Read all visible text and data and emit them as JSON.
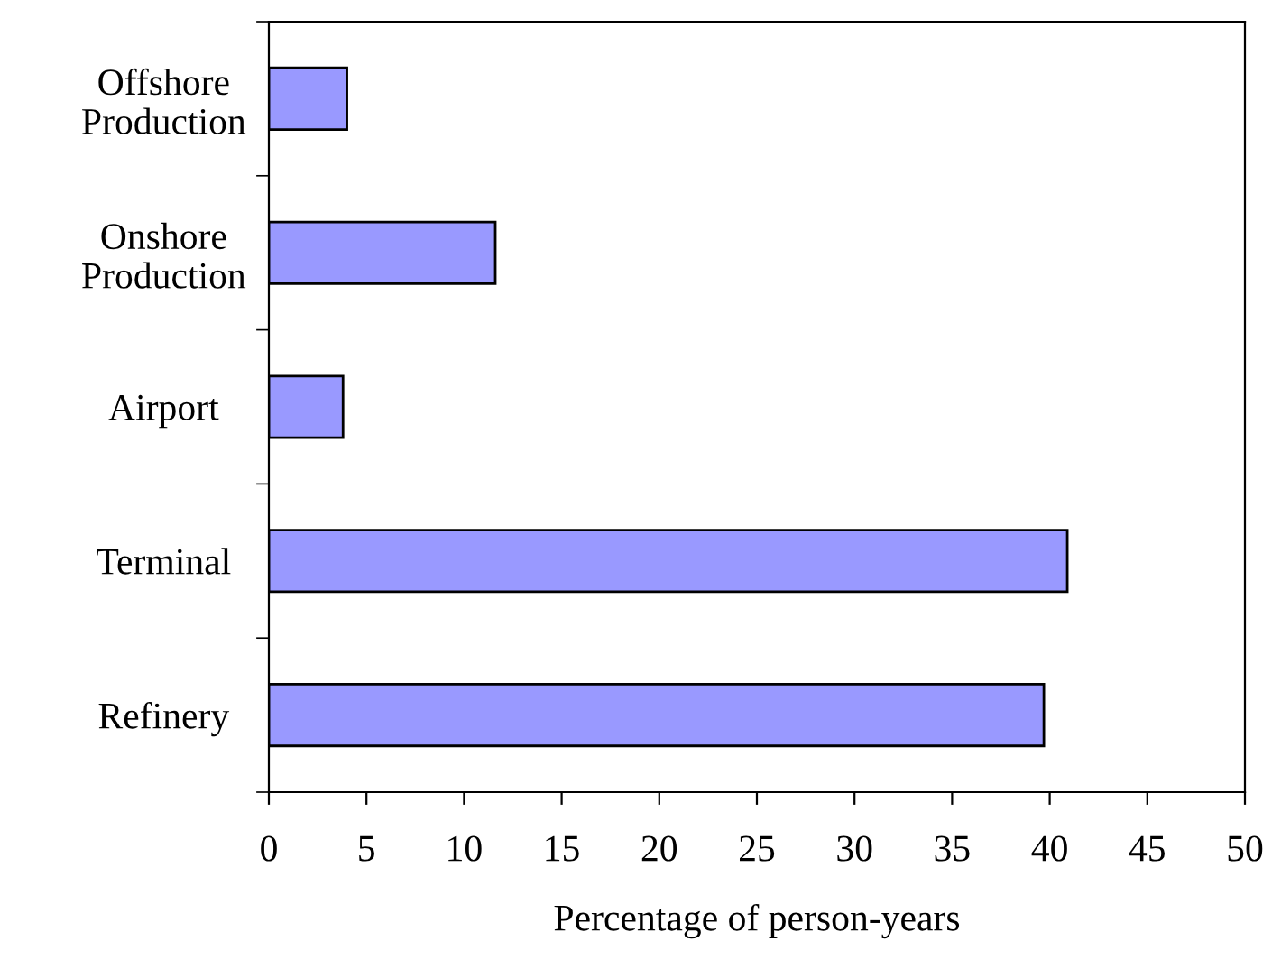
{
  "chart_data": {
    "type": "bar",
    "orientation": "horizontal",
    "categories": [
      "Offshore\nProduction",
      "Onshore\nProduction",
      "Airport",
      "Terminal",
      "Refinery"
    ],
    "values": [
      4.0,
      11.6,
      3.8,
      40.9,
      39.7
    ],
    "color": "#9999ff",
    "xlabel": "Percentage of person-years",
    "xlim": [
      0,
      50
    ],
    "xticks": [
      0,
      5,
      10,
      15,
      20,
      25,
      30,
      35,
      40,
      45,
      50
    ],
    "grid": false,
    "legend": false
  }
}
